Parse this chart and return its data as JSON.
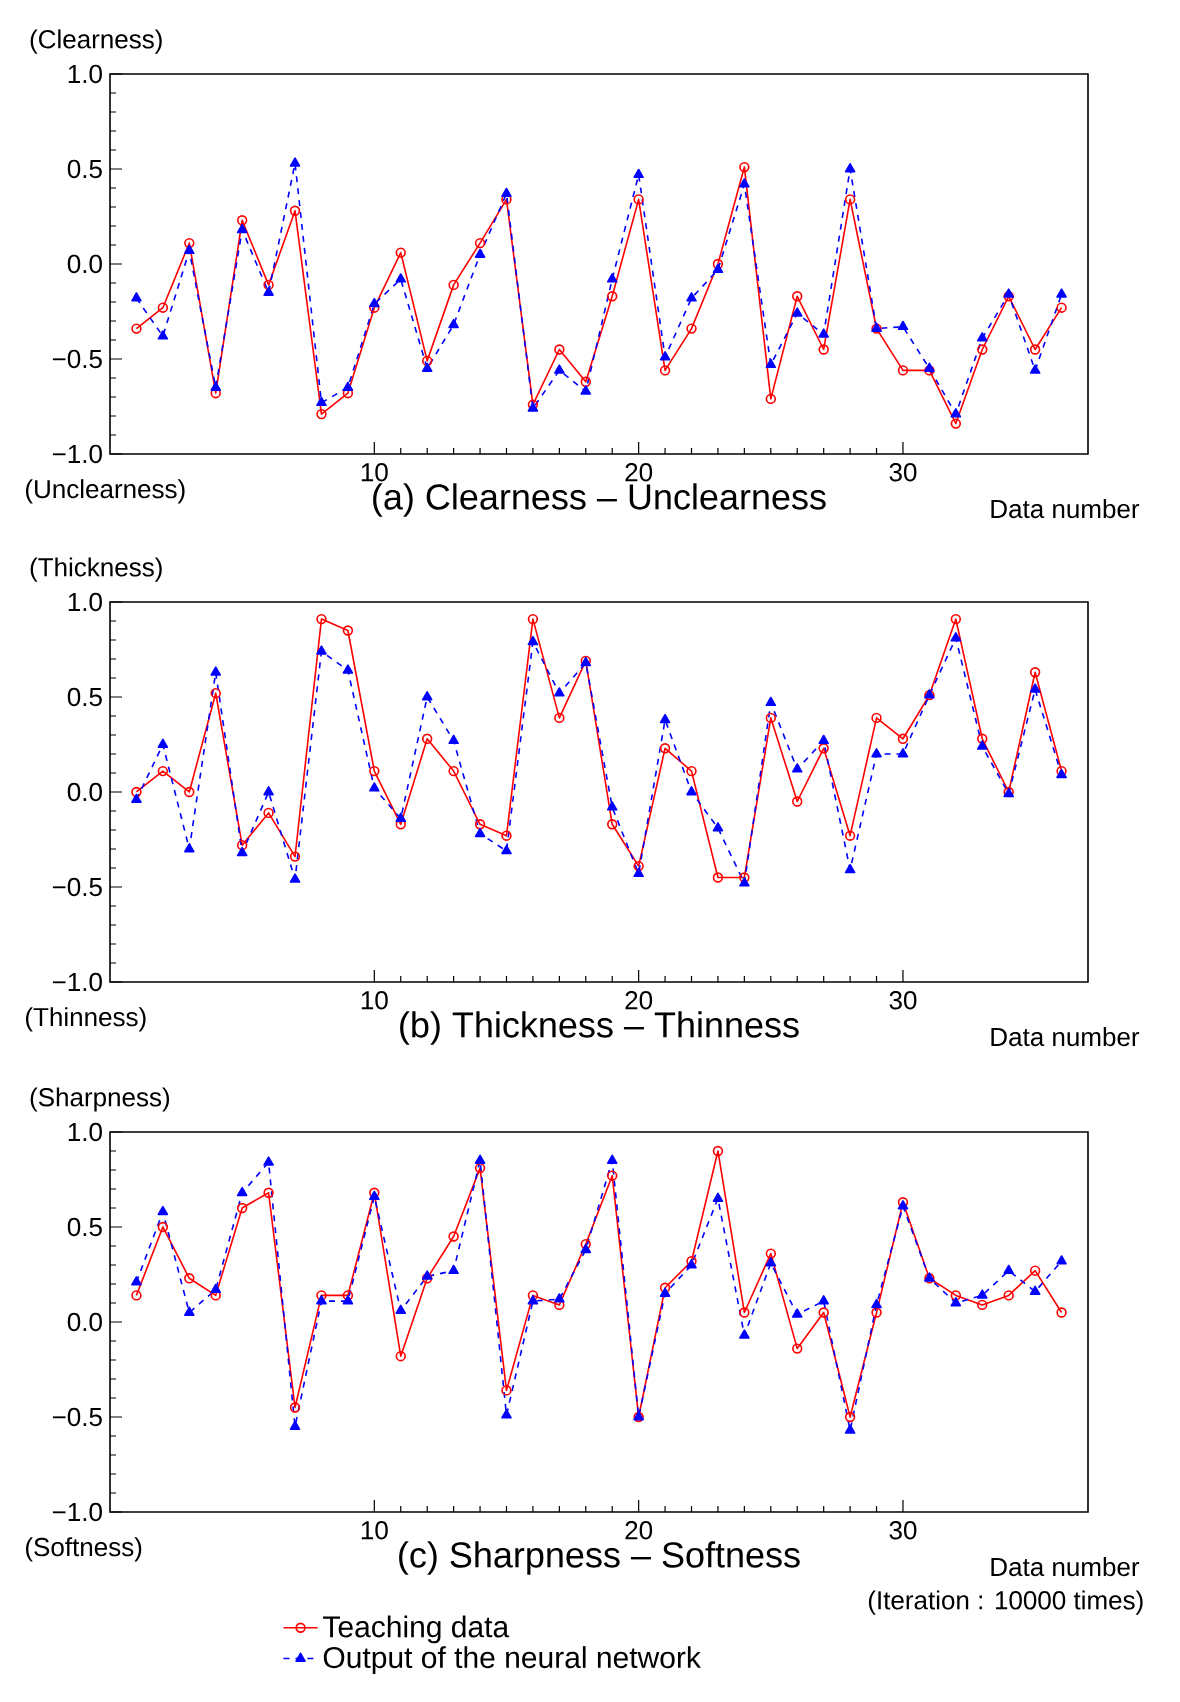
{
  "chart_data": [
    {
      "type": "line",
      "title": "(a) Clearness – Unclearness",
      "xlabel": "Data number",
      "ylabel": "(Clearness)",
      "annotations": [
        "(Unclearness)"
      ],
      "xlim": [
        0,
        37
      ],
      "xticks": [
        10,
        20,
        30
      ],
      "ylim": [
        -1,
        1
      ],
      "yticks": [
        {
          "value": -1,
          "label": "−1.0"
        },
        {
          "value": -0.5,
          "label": "−0.5"
        },
        {
          "value": 0,
          "label": "0.0"
        },
        {
          "value": 0.5,
          "label": "0.5"
        },
        {
          "value": 1,
          "label": "1.0"
        }
      ],
      "x": [
        1,
        2,
        3,
        4,
        5,
        6,
        7,
        8,
        9,
        10,
        11,
        12,
        13,
        14,
        15,
        16,
        17,
        18,
        19,
        20,
        21,
        22,
        23,
        24,
        25,
        26,
        27,
        28,
        29,
        30,
        31,
        32,
        33,
        34,
        35,
        36
      ],
      "series": [
        {
          "color": "#ff0000",
          "marker": "circle",
          "line_style": "solid",
          "values": [
            -0.34,
            -0.23,
            0.11,
            -0.68,
            0.23,
            -0.11,
            0.28,
            -0.79,
            -0.68,
            -0.23,
            0.06,
            -0.51,
            -0.11,
            0.11,
            0.34,
            -0.74,
            -0.45,
            -0.62,
            -0.17,
            0.34,
            -0.56,
            -0.34,
            0.0,
            0.51,
            -0.71,
            -0.17,
            -0.45,
            0.34,
            -0.34,
            -0.56,
            -0.56,
            -0.84,
            -0.45,
            -0.17,
            -0.45,
            -0.23
          ]
        },
        {
          "color": "#0000ff",
          "marker": "triangle",
          "line_style": "dashed",
          "values": [
            -0.18,
            -0.38,
            0.07,
            -0.65,
            0.18,
            -0.15,
            0.53,
            -0.73,
            -0.65,
            -0.21,
            -0.08,
            -0.55,
            -0.32,
            0.05,
            0.37,
            -0.76,
            -0.56,
            -0.67,
            -0.08,
            0.47,
            -0.49,
            -0.18,
            -0.03,
            0.42,
            -0.53,
            -0.26,
            -0.37,
            0.5,
            -0.34,
            -0.33,
            -0.55,
            -0.79,
            -0.39,
            -0.16,
            -0.56,
            -0.16
          ]
        }
      ]
    },
    {
      "type": "line",
      "title": "(b) Thickness – Thinness",
      "xlabel": "Data number",
      "ylabel": "(Thickness)",
      "annotations": [
        "(Thinness)"
      ],
      "xlim": [
        0,
        37
      ],
      "xticks": [
        10,
        20,
        30
      ],
      "ylim": [
        -1,
        1
      ],
      "yticks": [
        {
          "value": -1,
          "label": "−1.0"
        },
        {
          "value": -0.5,
          "label": "−0.5"
        },
        {
          "value": 0,
          "label": "0.0"
        },
        {
          "value": 0.5,
          "label": "0.5"
        },
        {
          "value": 1,
          "label": "1.0"
        }
      ],
      "x": [
        1,
        2,
        3,
        4,
        5,
        6,
        7,
        8,
        9,
        10,
        11,
        12,
        13,
        14,
        15,
        16,
        17,
        18,
        19,
        20,
        21,
        22,
        23,
        24,
        25,
        26,
        27,
        28,
        29,
        30,
        31,
        32,
        33,
        34,
        35,
        36
      ],
      "series": [
        {
          "color": "#ff0000",
          "marker": "circle",
          "line_style": "solid",
          "values": [
            0.0,
            0.11,
            0.0,
            0.52,
            -0.28,
            -0.11,
            -0.34,
            0.91,
            0.85,
            0.11,
            -0.17,
            0.28,
            0.11,
            -0.17,
            -0.23,
            0.91,
            0.39,
            0.69,
            -0.17,
            -0.39,
            0.23,
            0.11,
            -0.45,
            -0.45,
            0.39,
            -0.05,
            0.23,
            -0.23,
            0.39,
            0.28,
            0.51,
            0.91,
            0.28,
            0.0,
            0.63,
            0.11
          ]
        },
        {
          "color": "#0000ff",
          "marker": "triangle",
          "line_style": "dashed",
          "values": [
            -0.04,
            0.25,
            -0.3,
            0.63,
            -0.32,
            0.0,
            -0.46,
            0.74,
            0.64,
            0.02,
            -0.14,
            0.5,
            0.27,
            -0.22,
            -0.31,
            0.79,
            0.52,
            0.68,
            -0.08,
            -0.43,
            0.38,
            0.0,
            -0.19,
            -0.48,
            0.47,
            0.12,
            0.27,
            -0.41,
            0.2,
            0.2,
            0.51,
            0.81,
            0.24,
            -0.01,
            0.54,
            0.09
          ]
        }
      ]
    },
    {
      "type": "line",
      "title": "(c) Sharpness – Softness",
      "xlabel": "Data number",
      "ylabel": "(Sharpness)",
      "annotations": [
        "(Softness)",
        "(Iteration : 10000 times)"
      ],
      "xlim": [
        0,
        37
      ],
      "xticks": [
        10,
        20,
        30
      ],
      "ylim": [
        -1,
        1
      ],
      "yticks": [
        {
          "value": -1,
          "label": "−1.0"
        },
        {
          "value": -0.5,
          "label": "−0.5"
        },
        {
          "value": 0,
          "label": "0.0"
        },
        {
          "value": 0.5,
          "label": "0.5"
        },
        {
          "value": 1,
          "label": "1.0"
        }
      ],
      "legend": "bottom",
      "x": [
        1,
        2,
        3,
        4,
        5,
        6,
        7,
        8,
        9,
        10,
        11,
        12,
        13,
        14,
        15,
        16,
        17,
        18,
        19,
        20,
        21,
        22,
        23,
        24,
        25,
        26,
        27,
        28,
        29,
        30,
        31,
        32,
        33,
        34,
        35,
        36
      ],
      "series": [
        {
          "name": "Teaching data",
          "color": "#ff0000",
          "marker": "circle",
          "line_style": "solid",
          "values": [
            0.14,
            0.5,
            0.23,
            0.14,
            0.6,
            0.68,
            -0.45,
            0.14,
            0.14,
            0.68,
            -0.18,
            0.23,
            0.45,
            0.81,
            -0.36,
            0.14,
            0.09,
            0.41,
            0.77,
            -0.5,
            0.18,
            0.32,
            0.9,
            0.05,
            0.36,
            -0.14,
            0.05,
            -0.5,
            0.05,
            0.63,
            0.23,
            0.14,
            0.09,
            0.14,
            0.27,
            0.05
          ]
        },
        {
          "name": "Output of the neural network",
          "color": "#0000ff",
          "marker": "triangle",
          "line_style": "dashed",
          "values": [
            0.21,
            0.58,
            0.05,
            0.17,
            0.68,
            0.84,
            -0.55,
            0.11,
            0.11,
            0.66,
            0.06,
            0.24,
            0.27,
            0.85,
            -0.49,
            0.11,
            0.12,
            0.38,
            0.85,
            -0.5,
            0.15,
            0.3,
            0.65,
            -0.07,
            0.31,
            0.04,
            0.11,
            -0.57,
            0.09,
            0.61,
            0.23,
            0.1,
            0.14,
            0.27,
            0.16,
            0.32
          ]
        }
      ]
    }
  ]
}
